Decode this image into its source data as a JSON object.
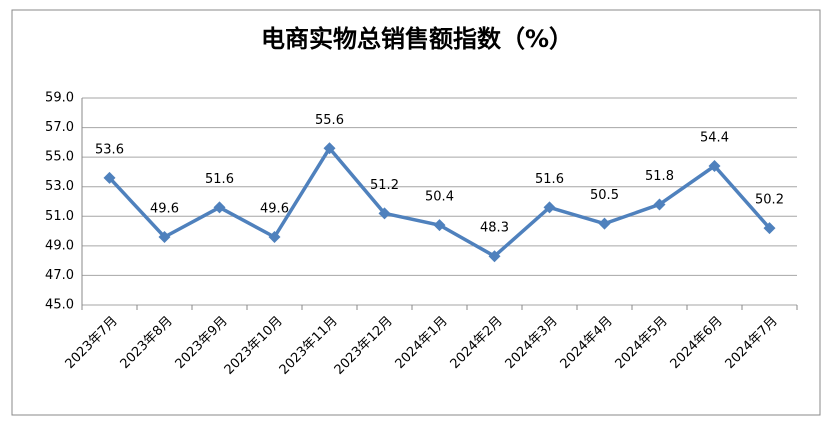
{
  "chart_data": {
    "type": "line",
    "title": "电商实物总销售额指数（%）",
    "categories": [
      "2023年7月",
      "2023年8月",
      "2023年9月",
      "2023年10月",
      "2023年11月",
      "2023年12月",
      "2024年1月",
      "2024年2月",
      "2024年3月",
      "2024年4月",
      "2024年5月",
      "2024年6月",
      "2024年7月"
    ],
    "series": [
      {
        "name": "电商实物总销售额指数",
        "color": "#4f81bd",
        "values": [
          53.6,
          49.6,
          51.6,
          49.6,
          55.6,
          51.2,
          50.4,
          48.3,
          51.6,
          50.5,
          51.8,
          54.4,
          50.2
        ]
      }
    ],
    "ylim": [
      45,
      59
    ],
    "yticks": [
      {
        "value": 45,
        "label": "45.0"
      },
      {
        "value": 47,
        "label": "47.0"
      },
      {
        "value": 49,
        "label": "49.0"
      },
      {
        "value": 51,
        "label": "51.0"
      },
      {
        "value": 53,
        "label": "53.0"
      },
      {
        "value": 55,
        "label": "55.0"
      },
      {
        "value": 57,
        "label": "57.0"
      },
      {
        "value": 59,
        "label": "59.0"
      }
    ],
    "grid": true
  }
}
